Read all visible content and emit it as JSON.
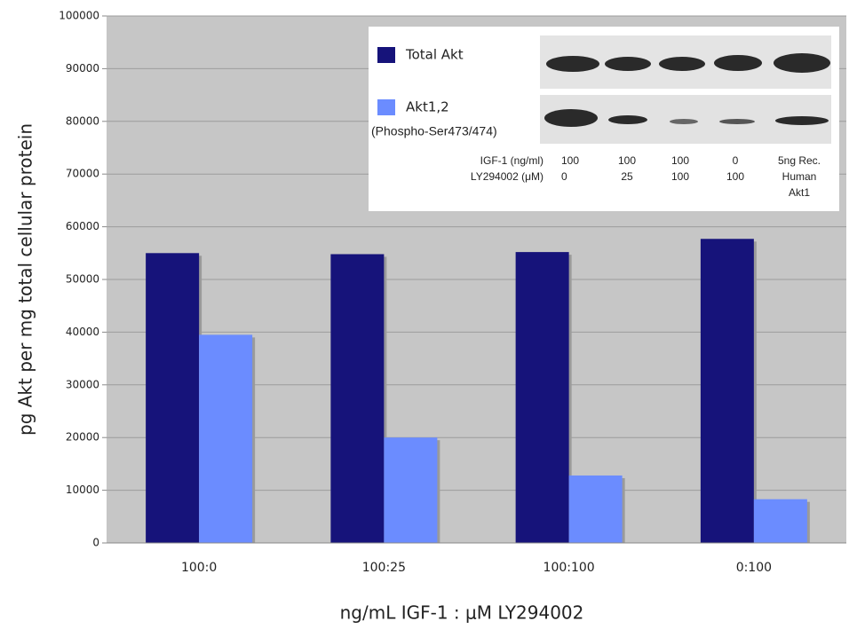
{
  "chart_data": {
    "type": "bar",
    "x_label": "ng/mL IGF-1 : μM LY294002",
    "y_label": "pg Akt per mg total cellular protein",
    "categories": [
      "100:0",
      "100:25",
      "100:100",
      "0:100"
    ],
    "series": [
      {
        "name": "Total Akt",
        "color": "#16137a",
        "values": [
          55000,
          54800,
          55200,
          57700
        ]
      },
      {
        "name": "Akt1,2",
        "note": "(Phospho-Ser473/474)",
        "color": "#6b8cff",
        "values": [
          39500,
          20000,
          12800,
          8300
        ]
      }
    ],
    "ylim": [
      0,
      100000
    ],
    "yticks": [
      0,
      10000,
      20000,
      30000,
      40000,
      50000,
      60000,
      70000,
      80000,
      90000,
      100000
    ],
    "grid": true,
    "blot": {
      "row_labels": [
        "IGF-1 (ng/ml)",
        "LY294002 (μM)"
      ],
      "lanes": [
        [
          "100",
          "0"
        ],
        [
          "100",
          "25"
        ],
        [
          "100",
          "100"
        ],
        [
          "0",
          "100"
        ],
        [
          "5ng Rec.",
          "Human",
          "Akt1"
        ]
      ]
    }
  }
}
